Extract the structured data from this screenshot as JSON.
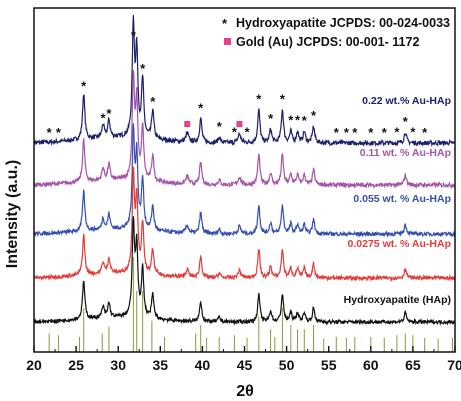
{
  "chart_data": {
    "type": "line",
    "xlabel": "2θ",
    "ylabel": "Intensity (a.u.)",
    "xlim": [
      20,
      70
    ],
    "xticks": [
      "20",
      "25",
      "30",
      "35",
      "40",
      "45",
      "50",
      "55",
      "60",
      "65",
      "70"
    ],
    "legend": [
      {
        "marker": "*",
        "text": "Hydroxyapatite JCPDS: 00-024-0033",
        "color": "#111111"
      },
      {
        "marker": "square",
        "text": "Gold (Au) JCPDS:  00-001- 1172",
        "color": "#e8408a"
      }
    ],
    "series": [
      {
        "name": "0.22 wt.% Au-HAp",
        "color": "#1c1f6e"
      },
      {
        "name": "0.11 wt. % Au-HAp",
        "color": "#a455a8"
      },
      {
        "name": "0.055 wt. % Au-HAp",
        "color": "#3350b0"
      },
      {
        "name": "0.0275 wt. % Au-HAp",
        "color": "#e33b3b"
      },
      {
        "name": "Hydroxyapatite (HAp)",
        "color": "#111111"
      }
    ],
    "peaks": [
      {
        "x": 25.9,
        "h": 0.42
      },
      {
        "x": 28.2,
        "h": 0.12
      },
      {
        "x": 28.9,
        "h": 0.16
      },
      {
        "x": 31.8,
        "h": 1.0
      },
      {
        "x": 32.2,
        "h": 0.75
      },
      {
        "x": 32.9,
        "h": 0.52
      },
      {
        "x": 34.1,
        "h": 0.26
      },
      {
        "x": 39.8,
        "h": 0.22
      },
      {
        "x": 42.0,
        "h": 0.05
      },
      {
        "x": 46.7,
        "h": 0.3
      },
      {
        "x": 48.1,
        "h": 0.12
      },
      {
        "x": 49.5,
        "h": 0.3
      },
      {
        "x": 50.5,
        "h": 0.1
      },
      {
        "x": 51.3,
        "h": 0.1
      },
      {
        "x": 52.1,
        "h": 0.1
      },
      {
        "x": 53.2,
        "h": 0.15
      },
      {
        "x": 64.1,
        "h": 0.1
      }
    ],
    "au_peaks": [
      38.2,
      44.4
    ],
    "hap_markers": [
      21.8,
      22.9,
      25.9,
      28.2,
      28.9,
      31.8,
      32.9,
      34.1,
      39.8,
      42.0,
      43.8,
      45.3,
      46.7,
      48.1,
      49.5,
      50.5,
      51.3,
      52.1,
      53.2,
      55.9,
      57.1,
      58.1,
      60.0,
      61.6,
      63.1,
      64.1,
      65.0,
      66.4
    ],
    "reference_lines": [
      {
        "x": 21.8,
        "h": 0.1
      },
      {
        "x": 22.9,
        "h": 0.08
      },
      {
        "x": 25.4,
        "h": 0.06
      },
      {
        "x": 25.9,
        "h": 0.4
      },
      {
        "x": 28.1,
        "h": 0.1
      },
      {
        "x": 28.9,
        "h": 0.18
      },
      {
        "x": 31.8,
        "h": 1.0
      },
      {
        "x": 32.2,
        "h": 0.6
      },
      {
        "x": 32.9,
        "h": 0.6
      },
      {
        "x": 34.0,
        "h": 0.25
      },
      {
        "x": 35.5,
        "h": 0.06
      },
      {
        "x": 39.2,
        "h": 0.1
      },
      {
        "x": 39.8,
        "h": 0.2
      },
      {
        "x": 40.5,
        "h": 0.05
      },
      {
        "x": 42.0,
        "h": 0.06
      },
      {
        "x": 43.8,
        "h": 0.08
      },
      {
        "x": 45.3,
        "h": 0.05
      },
      {
        "x": 46.7,
        "h": 0.3
      },
      {
        "x": 48.1,
        "h": 0.15
      },
      {
        "x": 48.6,
        "h": 0.06
      },
      {
        "x": 49.5,
        "h": 0.4
      },
      {
        "x": 50.5,
        "h": 0.2
      },
      {
        "x": 51.3,
        "h": 0.15
      },
      {
        "x": 52.1,
        "h": 0.15
      },
      {
        "x": 53.2,
        "h": 0.2
      },
      {
        "x": 54.4,
        "h": 0.04
      },
      {
        "x": 55.9,
        "h": 0.06
      },
      {
        "x": 57.1,
        "h": 0.05
      },
      {
        "x": 58.1,
        "h": 0.06
      },
      {
        "x": 60.0,
        "h": 0.06
      },
      {
        "x": 61.6,
        "h": 0.05
      },
      {
        "x": 63.1,
        "h": 0.08
      },
      {
        "x": 64.1,
        "h": 0.1
      },
      {
        "x": 65.0,
        "h": 0.08
      },
      {
        "x": 66.4,
        "h": 0.05
      },
      {
        "x": 68.0,
        "h": 0.04
      },
      {
        "x": 69.7,
        "h": 0.05
      }
    ],
    "reference_color": "#8a9a3a",
    "grid": false
  }
}
